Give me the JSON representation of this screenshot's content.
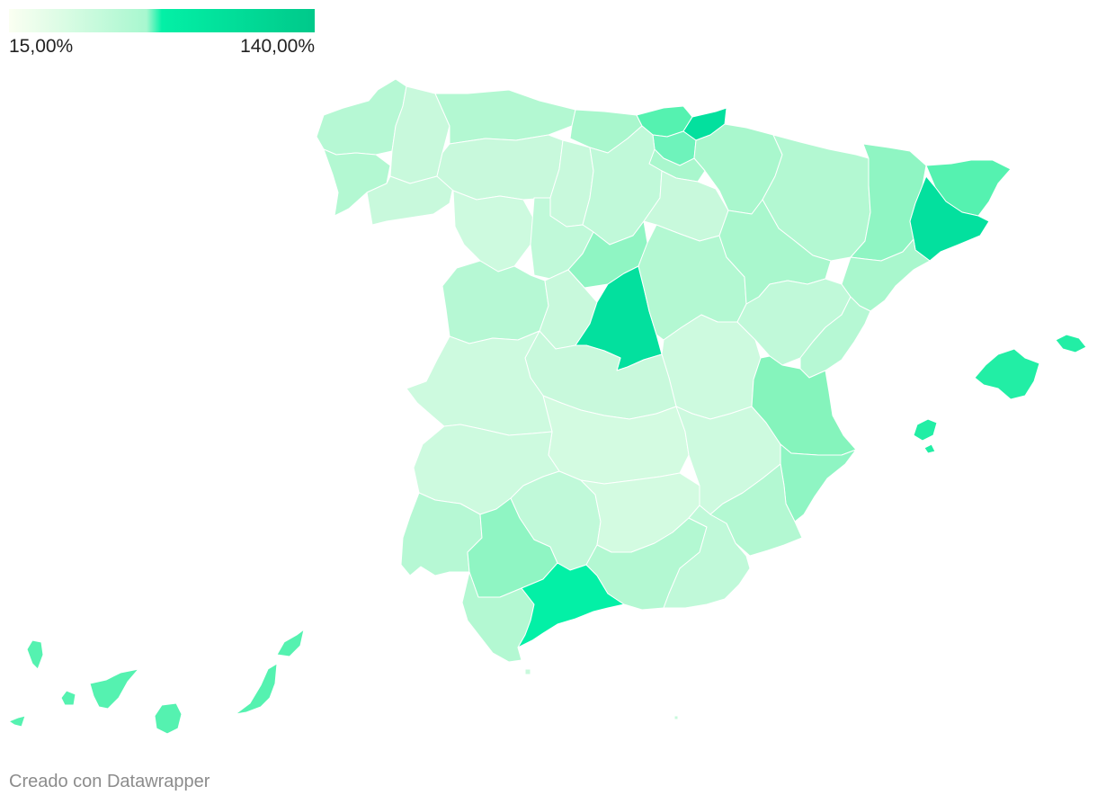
{
  "legend": {
    "min_label": "15,00%",
    "max_label": "140,00%",
    "colors": [
      "#fbfff2",
      "#a8f7cf",
      "#03f0a6",
      "#00c98a"
    ]
  },
  "colors": {
    "background": "#ffffff",
    "border": "#ffffff",
    "low": "#d3fbe1",
    "light": "#c8f9dc",
    "mid_light": "#b3f8d2",
    "mid": "#9df6c8",
    "mid_strong": "#85f4bc",
    "strong": "#55f2b0",
    "stronger": "#22eeA5",
    "strongest": "#03e09e"
  },
  "credit": "Creado con Datawrapper"
}
